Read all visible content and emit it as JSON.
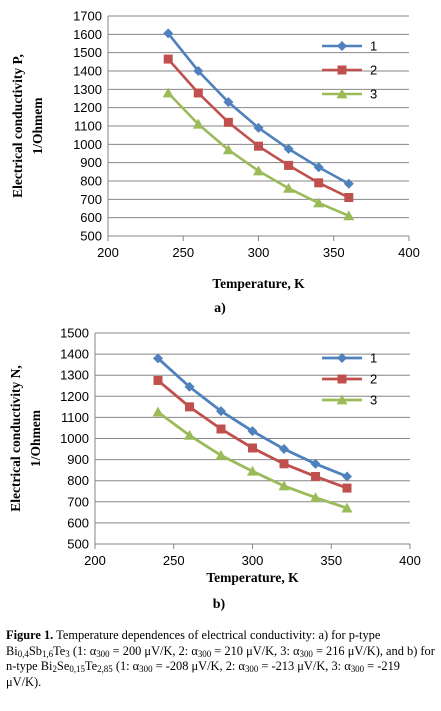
{
  "chart_data": [
    {
      "type": "line",
      "panel_label": "a)",
      "xlabel": "Temperature, K",
      "ylabel_line1": "Electrical conductivity P,",
      "ylabel_line2": "1/Ohmem",
      "xlim": [
        200,
        400
      ],
      "ylim": [
        500,
        1700
      ],
      "xticks": [
        200,
        250,
        300,
        350,
        400
      ],
      "yticks": [
        500,
        600,
        700,
        800,
        900,
        1000,
        1100,
        1200,
        1300,
        1400,
        1500,
        1600,
        1700
      ],
      "grid": true,
      "legend_position": "top-right",
      "x": [
        240,
        260,
        280,
        300,
        320,
        340,
        360
      ],
      "series": [
        {
          "name": "1",
          "marker": "diamond",
          "color": "#4F81BD",
          "values": [
            1605,
            1400,
            1230,
            1090,
            975,
            875,
            785
          ]
        },
        {
          "name": "2",
          "marker": "square",
          "color": "#C0504D",
          "values": [
            1465,
            1280,
            1120,
            990,
            885,
            790,
            710
          ]
        },
        {
          "name": "3",
          "marker": "triangle",
          "color": "#9BBB59",
          "values": [
            1280,
            1110,
            970,
            855,
            760,
            680,
            610
          ]
        }
      ]
    },
    {
      "type": "line",
      "panel_label": "b)",
      "xlabel": "Temperature, K",
      "ylabel_line1": "Electrical conductivity N,",
      "ylabel_line2": "1/Ohmem",
      "xlim": [
        200,
        400
      ],
      "ylim": [
        500,
        1500
      ],
      "xticks": [
        200,
        250,
        300,
        350,
        400
      ],
      "yticks": [
        500,
        600,
        700,
        800,
        900,
        1000,
        1100,
        1200,
        1300,
        1400,
        1500
      ],
      "grid": true,
      "legend_position": "top-right",
      "x": [
        240,
        260,
        280,
        300,
        320,
        340,
        360
      ],
      "series": [
        {
          "name": "1",
          "marker": "diamond",
          "color": "#4F81BD",
          "values": [
            1380,
            1245,
            1130,
            1035,
            950,
            880,
            820
          ]
        },
        {
          "name": "2",
          "marker": "square",
          "color": "#C0504D",
          "values": [
            1275,
            1150,
            1045,
            955,
            880,
            820,
            765
          ]
        },
        {
          "name": "3",
          "marker": "triangle",
          "color": "#9BBB59",
          "values": [
            1125,
            1015,
            920,
            845,
            775,
            720,
            670
          ]
        }
      ]
    }
  ],
  "caption": {
    "figure_label": "Figure 1.",
    "t1": " Temperature dependences of electrical conductivity: a) for p-type Bi",
    "s1": "0,4",
    "t2": "Sb",
    "s2": "1,6",
    "t3": "Te",
    "s3": "3",
    "t4": " (1: α",
    "s4": "300",
    "t5": " = 200 μV/K, 2: α",
    "s5": "300",
    "t6": " = 210 μV/K, 3: α",
    "s6": "300",
    "t7": " = 216 μV/K), and b) for n-type Bi",
    "s7": "2",
    "t8": "Se",
    "s8": "0,15",
    "t9": "Te",
    "s9": "2,85",
    "t10": " (1: α",
    "s10": "300",
    "t11": " = -208 μV/K, 2: α",
    "s11": "300",
    "t12": " = -213 μV/K, 3: α",
    "s12": "300",
    "t13": " = -219 μV/K)."
  }
}
